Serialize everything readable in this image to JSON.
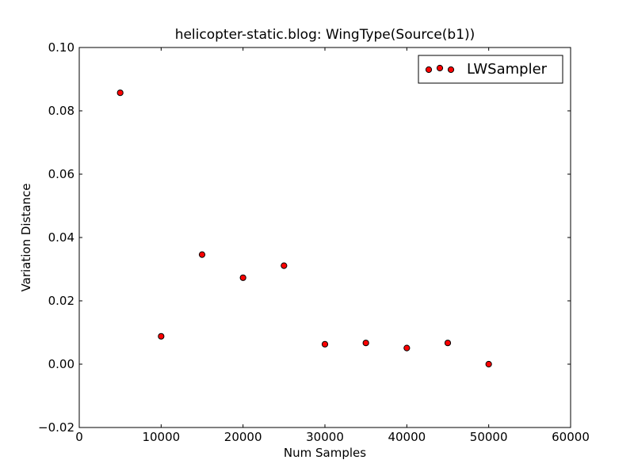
{
  "chart_data": {
    "type": "scatter",
    "title": "helicopter-static.blog: WingType(Source(b1))",
    "xlabel": "Num Samples",
    "ylabel": "Variation Distance",
    "xlim": [
      0,
      60000
    ],
    "ylim": [
      -0.02,
      0.1
    ],
    "x_ticks": [
      0,
      10000,
      20000,
      30000,
      40000,
      50000,
      60000
    ],
    "x_tick_labels": [
      "0",
      "10000",
      "20000",
      "30000",
      "40000",
      "50000",
      "60000"
    ],
    "y_ticks": [
      -0.02,
      0.0,
      0.02,
      0.04,
      0.06,
      0.08,
      0.1
    ],
    "y_tick_labels": [
      "−0.02",
      "0.00",
      "0.02",
      "0.04",
      "0.06",
      "0.08",
      "0.10"
    ],
    "grid": false,
    "legend_position": "top-right",
    "series": [
      {
        "name": "LWSampler",
        "color": "#ff0000",
        "edge_color": "#000000",
        "marker": "circle",
        "x": [
          5000,
          10000,
          15000,
          20000,
          25000,
          30000,
          35000,
          40000,
          45000,
          50000
        ],
        "y": [
          0.0857,
          0.0088,
          0.0346,
          0.0273,
          0.0311,
          0.0063,
          0.0067,
          0.0051,
          0.0067,
          0.0
        ]
      }
    ]
  }
}
